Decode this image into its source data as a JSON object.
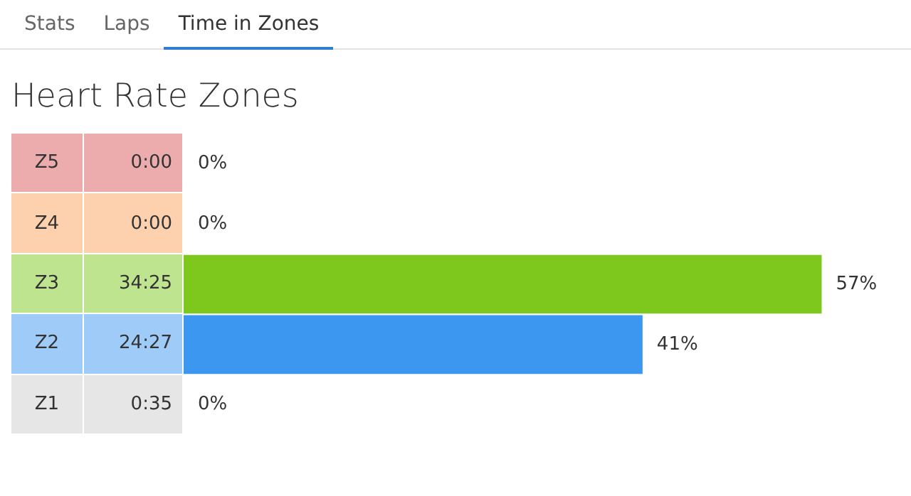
{
  "chart_data": {
    "type": "bar",
    "orientation": "horizontal",
    "title": "Heart Rate Zones",
    "categories": [
      "Z5",
      "Z4",
      "Z3",
      "Z2",
      "Z1"
    ],
    "values": [
      0,
      0,
      57,
      41,
      0
    ],
    "value_labels": [
      "0%",
      "0%",
      "57%",
      "41%",
      "0%"
    ],
    "colors": [
      "#d9565b",
      "#fba25c",
      "#7ec81e",
      "#3c97f0",
      "#cdcdcd"
    ],
    "annotations": [
      "Stats",
      "Laps",
      "Time in Zones",
      "0:00",
      "0:00",
      "34:25",
      "24:27",
      "0:35"
    ],
    "legend": false
  }
}
